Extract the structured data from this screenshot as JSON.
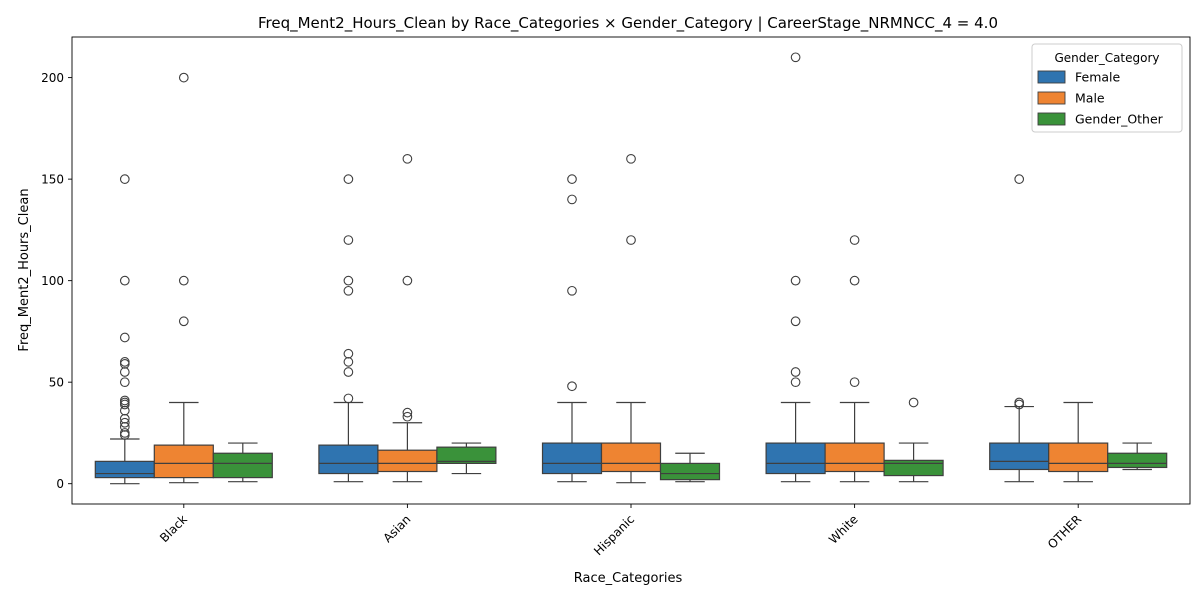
{
  "chart_data": {
    "type": "box",
    "title": "Freq_Ment2_Hours_Clean by Race_Categories × Gender_Category | CareerStage_NRMNCC_4 = 4.0",
    "xlabel": "Race_Categories",
    "ylabel": "Freq_Ment2_Hours_Clean",
    "ylim": [
      -10,
      220
    ],
    "yticks": [
      0,
      50,
      100,
      150,
      200
    ],
    "categories": [
      "Black",
      "Asian",
      "Hispanic",
      "White",
      "OTHER"
    ],
    "legend": {
      "title": "Gender_Category",
      "placement": "top-right"
    },
    "grid": false,
    "series": [
      {
        "name": "Female",
        "color": "#2f74b0",
        "boxes": [
          {
            "whisker_low": 0,
            "q1": 3,
            "median": 5,
            "q3": 11,
            "whisker_high": 22,
            "outliers": [
              150,
              100,
              72,
              60,
              59,
              55,
              50,
              41,
              40,
              39,
              36,
              32,
              30,
              28,
              25,
              24
            ]
          },
          {
            "whisker_low": 1,
            "q1": 5,
            "median": 10,
            "q3": 19,
            "whisker_high": 40,
            "outliers": [
              150,
              120,
              100,
              95,
              64,
              60,
              55,
              42
            ]
          },
          {
            "whisker_low": 1,
            "q1": 5,
            "median": 10,
            "q3": 20,
            "whisker_high": 40,
            "outliers": [
              150,
              140,
              95,
              48
            ]
          },
          {
            "whisker_low": 1,
            "q1": 5,
            "median": 10,
            "q3": 20,
            "whisker_high": 40,
            "outliers": [
              210,
              100,
              80,
              55,
              50
            ]
          },
          {
            "whisker_low": 1,
            "q1": 7,
            "median": 11,
            "q3": 20,
            "whisker_high": 38,
            "outliers": [
              150,
              40,
              39
            ]
          }
        ]
      },
      {
        "name": "Male",
        "color": "#ee8432",
        "boxes": [
          {
            "whisker_low": 0.5,
            "q1": 3,
            "median": 10,
            "q3": 19,
            "whisker_high": 40,
            "outliers": [
              200,
              100,
              80
            ]
          },
          {
            "whisker_low": 1,
            "q1": 6,
            "median": 10,
            "q3": 16.5,
            "whisker_high": 30,
            "outliers": [
              160,
              100,
              35,
              33
            ]
          },
          {
            "whisker_low": 0.5,
            "q1": 6,
            "median": 10,
            "q3": 20,
            "whisker_high": 40,
            "outliers": [
              160,
              120
            ]
          },
          {
            "whisker_low": 1,
            "q1": 6,
            "median": 10,
            "q3": 20,
            "whisker_high": 40,
            "outliers": [
              120,
              100,
              50
            ]
          },
          {
            "whisker_low": 1,
            "q1": 6,
            "median": 10,
            "q3": 20,
            "whisker_high": 40,
            "outliers": []
          }
        ]
      },
      {
        "name": "Gender_Other",
        "color": "#3a923a",
        "boxes": [
          {
            "whisker_low": 1,
            "q1": 3,
            "median": 10,
            "q3": 15,
            "whisker_high": 20,
            "outliers": []
          },
          {
            "whisker_low": 5,
            "q1": 10,
            "median": 11,
            "q3": 18,
            "whisker_high": 20,
            "outliers": []
          },
          {
            "whisker_low": 1,
            "q1": 2,
            "median": 5,
            "q3": 10,
            "whisker_high": 15,
            "outliers": []
          },
          {
            "whisker_low": 1,
            "q1": 4,
            "median": 10,
            "q3": 11.5,
            "whisker_high": 20,
            "outliers": [
              40
            ]
          },
          {
            "whisker_low": 7,
            "q1": 8,
            "median": 10,
            "q3": 15,
            "whisker_high": 20,
            "outliers": []
          }
        ]
      }
    ]
  }
}
